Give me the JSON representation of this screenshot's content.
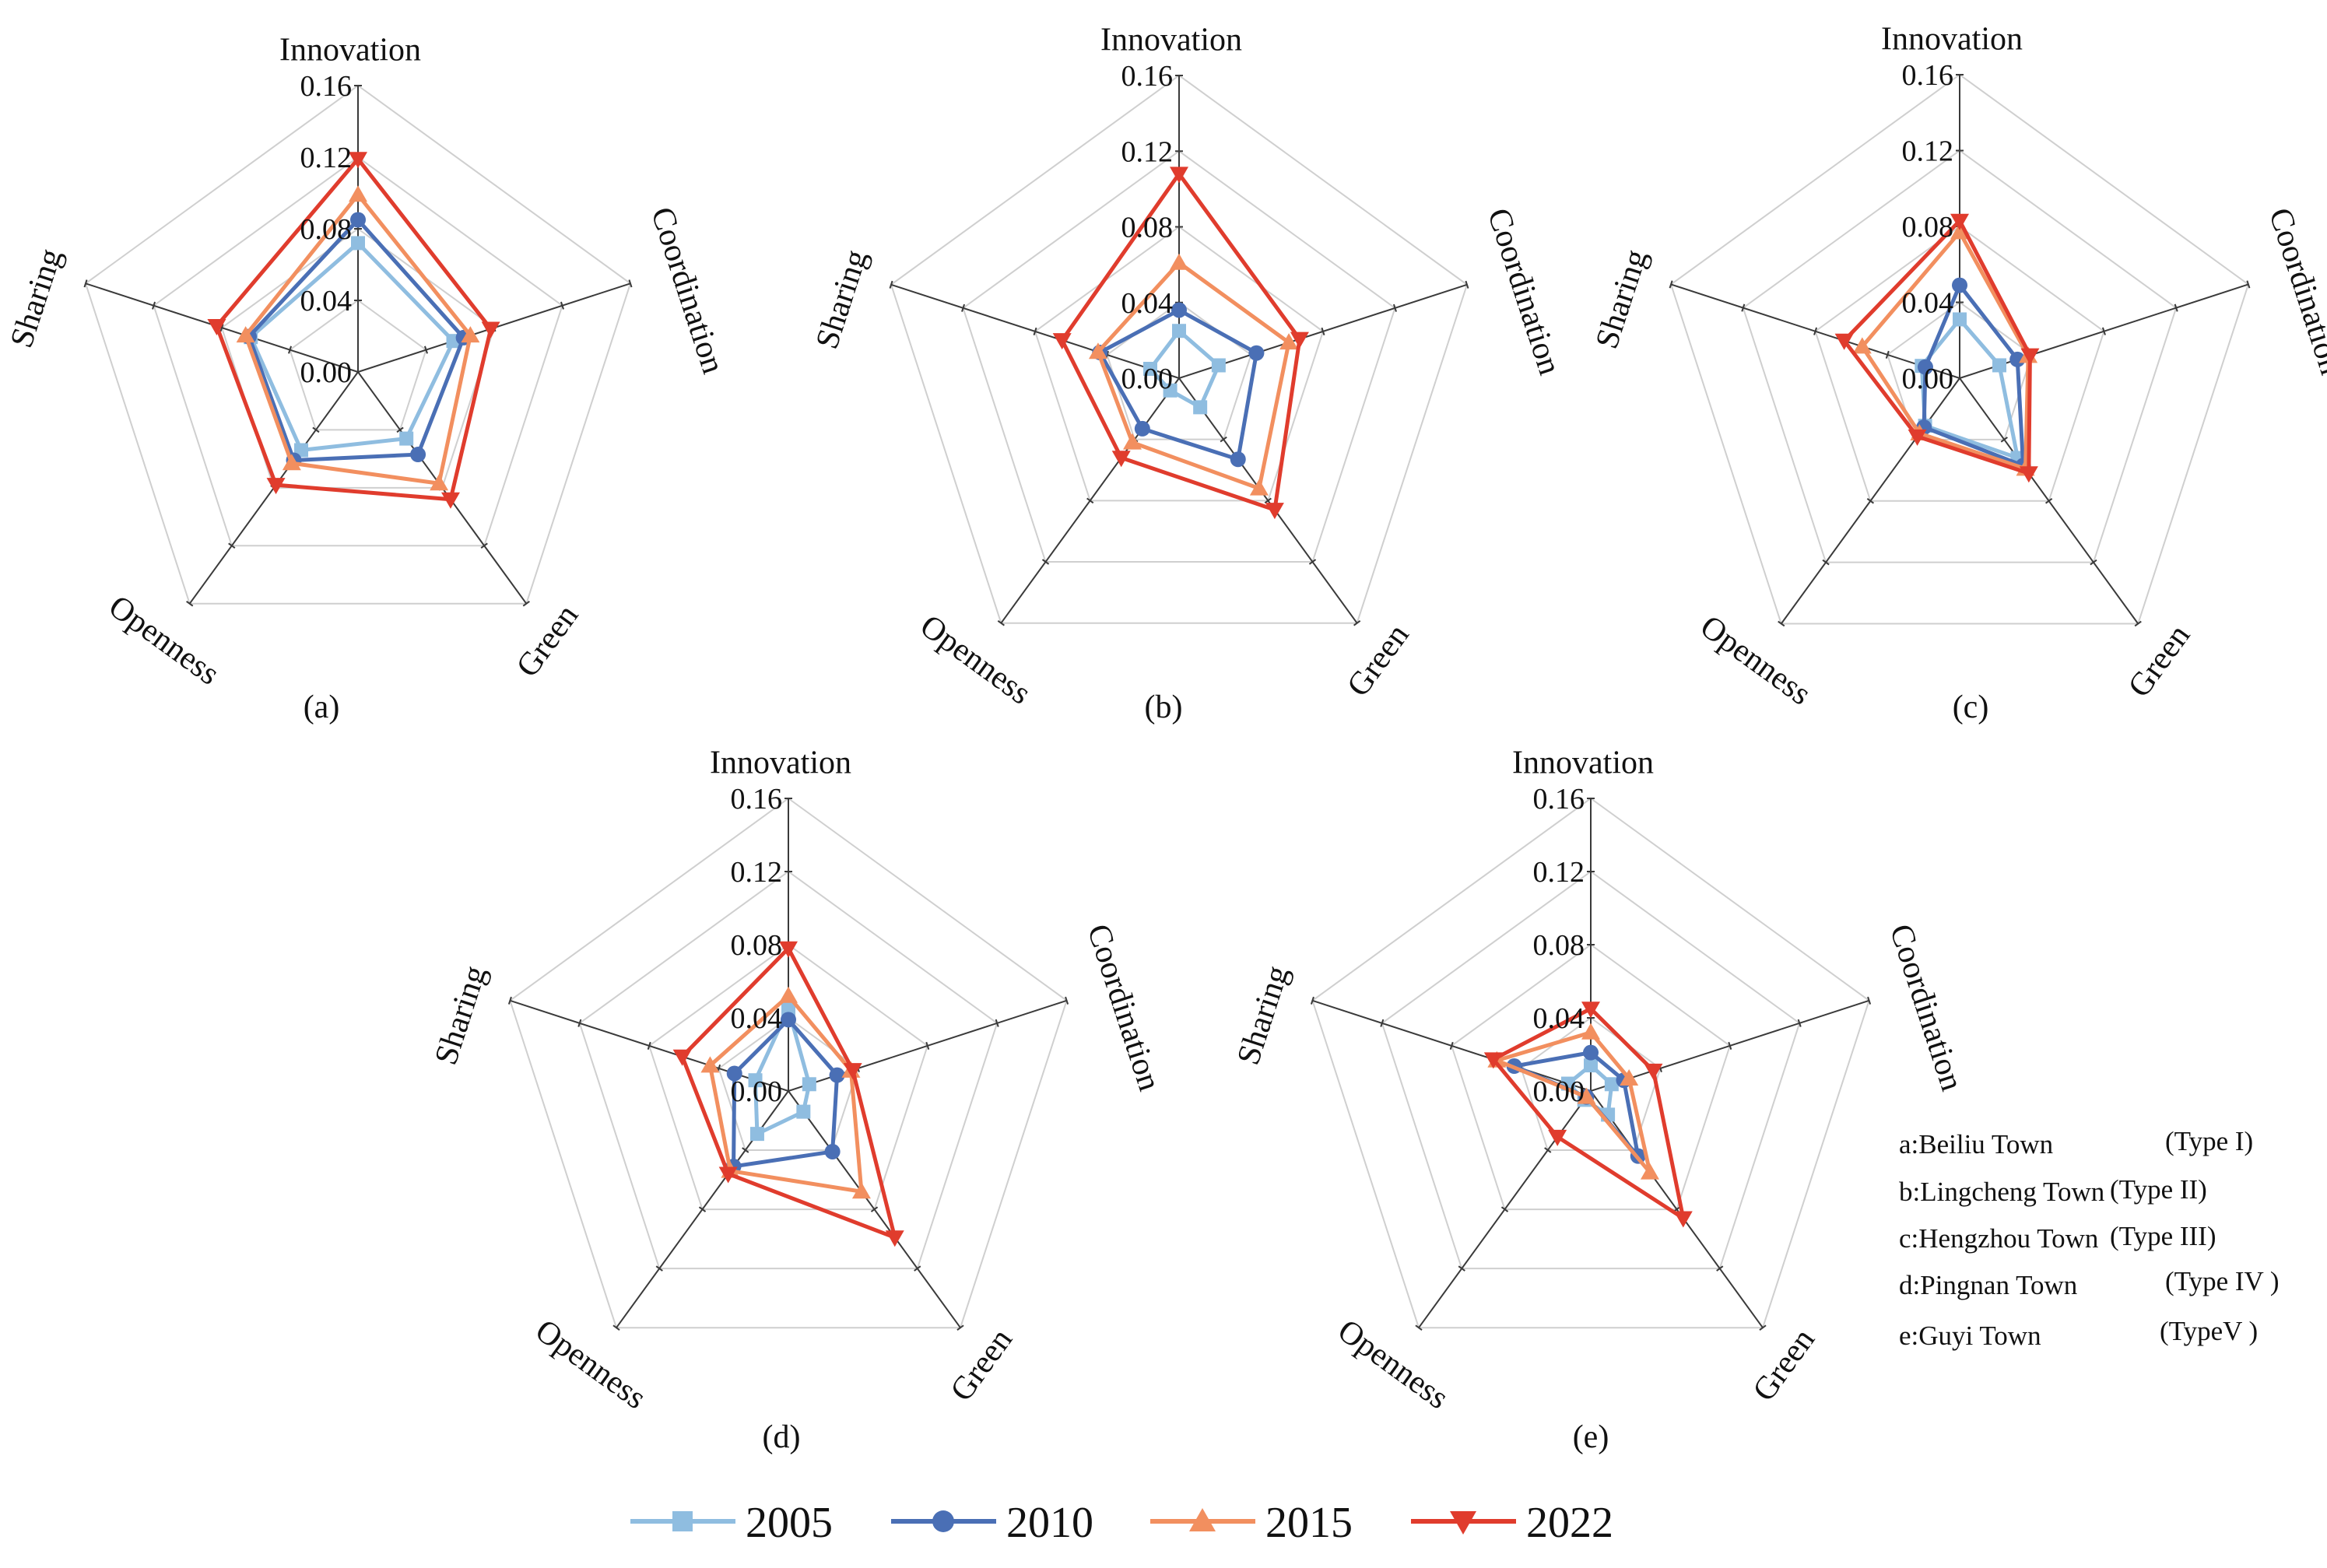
{
  "figure": {
    "axes": [
      "Innovation",
      "Coordination",
      "Green",
      "Openness",
      "Sharing"
    ],
    "ticks": [
      "0.00",
      "0.04",
      "0.08",
      "0.12",
      "0.16"
    ],
    "rmax": 0.16,
    "grid": true,
    "legend_position": "bottom",
    "key": [
      {
        "town": "a:Beiliu Town",
        "type": "(Type I)"
      },
      {
        "town": "b:Lingcheng Town",
        "type": "(Type II)"
      },
      {
        "town": "c:Hengzhou Town",
        "type": "(Type III)"
      },
      {
        "town": "d:Pingnan Town",
        "type": "(Type IV )"
      },
      {
        "town": "e:Guyi Town",
        "type": "(TypeV )"
      }
    ]
  },
  "series_style": [
    {
      "name": "2005",
      "color": "#8fbde0",
      "marker": "square"
    },
    {
      "name": "2010",
      "color": "#4a6fb5",
      "marker": "circle"
    },
    {
      "name": "2015",
      "color": "#f28f5f",
      "marker": "triangle-up"
    },
    {
      "name": "2022",
      "color": "#e03c2d",
      "marker": "triangle-down"
    }
  ],
  "chart_data": [
    {
      "type": "radar",
      "label": "(a)",
      "categories": [
        "Innovation",
        "Coordination",
        "Green",
        "Openness",
        "Sharing"
      ],
      "rlim": [
        0,
        0.16
      ],
      "series": [
        {
          "name": "2005",
          "values": [
            0.072,
            0.056,
            0.046,
            0.054,
            0.063
          ]
        },
        {
          "name": "2010",
          "values": [
            0.085,
            0.062,
            0.057,
            0.061,
            0.064
          ]
        },
        {
          "name": "2015",
          "values": [
            0.099,
            0.066,
            0.077,
            0.063,
            0.066
          ]
        },
        {
          "name": "2022",
          "values": [
            0.119,
            0.078,
            0.088,
            0.078,
            0.083
          ]
        }
      ]
    },
    {
      "type": "radar",
      "label": "(b)",
      "categories": [
        "Innovation",
        "Coordination",
        "Green",
        "Openness",
        "Sharing"
      ],
      "rlim": [
        0,
        0.16
      ],
      "series": [
        {
          "name": "2005",
          "values": [
            0.025,
            0.022,
            0.019,
            0.008,
            0.016
          ]
        },
        {
          "name": "2010",
          "values": [
            0.036,
            0.043,
            0.053,
            0.033,
            0.044
          ]
        },
        {
          "name": "2015",
          "values": [
            0.061,
            0.061,
            0.072,
            0.042,
            0.045
          ]
        },
        {
          "name": "2022",
          "values": [
            0.108,
            0.067,
            0.086,
            0.052,
            0.065
          ]
        }
      ]
    },
    {
      "type": "radar",
      "label": "(c)",
      "categories": [
        "Innovation",
        "Coordination",
        "Green",
        "Openness",
        "Sharing"
      ],
      "rlim": [
        0,
        0.16
      ],
      "series": [
        {
          "name": "2005",
          "values": [
            0.031,
            0.022,
            0.052,
            0.031,
            0.021
          ]
        },
        {
          "name": "2010",
          "values": [
            0.049,
            0.032,
            0.057,
            0.032,
            0.019
          ]
        },
        {
          "name": "2015",
          "values": [
            0.077,
            0.038,
            0.059,
            0.036,
            0.054
          ]
        },
        {
          "name": "2022",
          "values": [
            0.083,
            0.039,
            0.062,
            0.038,
            0.064
          ]
        }
      ]
    },
    {
      "type": "radar",
      "label": "(d)",
      "categories": [
        "Innovation",
        "Coordination",
        "Green",
        "Openness",
        "Sharing"
      ],
      "rlim": [
        0,
        0.16
      ],
      "series": [
        {
          "name": "2005",
          "values": [
            0.045,
            0.012,
            0.014,
            0.029,
            0.019
          ]
        },
        {
          "name": "2010",
          "values": [
            0.039,
            0.028,
            0.041,
            0.051,
            0.031
          ]
        },
        {
          "name": "2015",
          "values": [
            0.052,
            0.036,
            0.068,
            0.054,
            0.045
          ]
        },
        {
          "name": "2022",
          "values": [
            0.078,
            0.037,
            0.099,
            0.056,
            0.061
          ]
        }
      ]
    },
    {
      "type": "radar",
      "label": "(e)",
      "categories": [
        "Innovation",
        "Coordination",
        "Green",
        "Openness",
        "Sharing"
      ],
      "rlim": [
        0,
        0.16
      ],
      "series": [
        {
          "name": "2005",
          "values": [
            0.014,
            0.012,
            0.016,
            0.006,
            0.013
          ]
        },
        {
          "name": "2010",
          "values": [
            0.021,
            0.019,
            0.044,
            0.004,
            0.044
          ]
        },
        {
          "name": "2015",
          "values": [
            0.032,
            0.022,
            0.055,
            0.004,
            0.054
          ]
        },
        {
          "name": "2022",
          "values": [
            0.045,
            0.036,
            0.086,
            0.031,
            0.056
          ]
        }
      ]
    }
  ]
}
